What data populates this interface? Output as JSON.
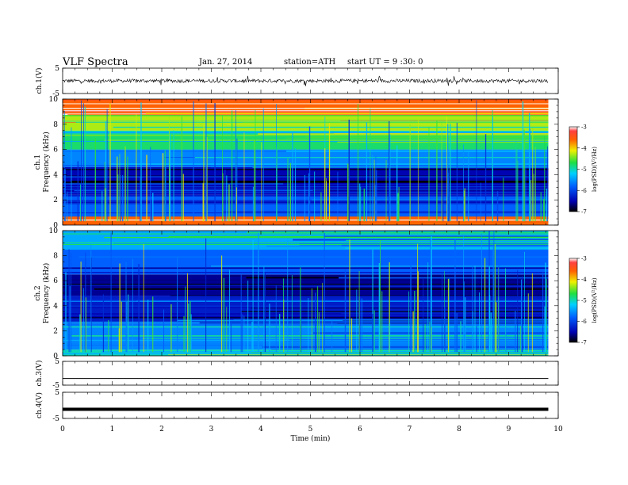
{
  "header": {
    "title": "VLF  Spectra",
    "date": "Jan. 27, 2014",
    "station": "station=ATH",
    "start": "start  UT  =   9  :30: 0"
  },
  "chart_data": [
    {
      "type": "line",
      "panel": "ch1-waveform",
      "ylabel": "ch.1(V)",
      "ylim": [
        -5,
        5
      ],
      "yticks": [
        "5",
        "-5"
      ],
      "x_range_min": [
        0,
        9.8
      ],
      "signal_level": 0,
      "note_values": "noisy waveform around 0 V with spikes up to about +/-1.5 V"
    },
    {
      "type": "heatmap",
      "panel": "ch1-spectrogram",
      "ylabel_channel": "ch.1",
      "ylabel": "Frequency  (kHz)",
      "ylim": [
        0,
        10
      ],
      "yticks": [
        "0",
        "2",
        "4",
        "6",
        "8",
        "10"
      ],
      "x_range_min": [
        0,
        9.8
      ],
      "colorbar_label": "log(PSD)(V²/Hz)",
      "colorbar_ticks": [
        "-3",
        "-4",
        "-5",
        "-6",
        "-7"
      ],
      "colorbar_range": [
        -7,
        -3
      ],
      "bands_khz": [
        {
          "from": 0,
          "to": 0.7,
          "level": -3.6
        },
        {
          "from": 0.7,
          "to": 2.4,
          "level": -5.8
        },
        {
          "from": 2.4,
          "to": 4.6,
          "level": -6.5
        },
        {
          "from": 4.6,
          "to": 6.0,
          "level": -5.6
        },
        {
          "from": 6.0,
          "to": 7.5,
          "level": -4.8
        },
        {
          "from": 7.5,
          "to": 8.8,
          "level": -4.3
        },
        {
          "from": 8.8,
          "to": 10,
          "level": -3.6
        }
      ]
    },
    {
      "type": "heatmap",
      "panel": "ch2-spectrogram",
      "ylabel_channel": "ch.2",
      "ylabel": "Frequency  (kHz)",
      "ylim": [
        0,
        10
      ],
      "yticks": [
        "0",
        "2",
        "4",
        "6",
        "8",
        "10"
      ],
      "x_range_min": [
        0,
        9.8
      ],
      "colorbar_label": "log(PSD)(V²/Hz)",
      "colorbar_ticks": [
        "-3",
        "-4",
        "-5",
        "-6",
        "-7"
      ],
      "colorbar_range": [
        -7,
        -3
      ],
      "bands_khz": [
        {
          "from": 0,
          "to": 0.5,
          "level": -5.0
        },
        {
          "from": 0.5,
          "to": 2.6,
          "level": -5.6
        },
        {
          "from": 2.6,
          "to": 4.8,
          "level": -6.3
        },
        {
          "from": 4.8,
          "to": 6.5,
          "level": -6.6
        },
        {
          "from": 6.5,
          "to": 8.5,
          "level": -5.8
        },
        {
          "from": 8.5,
          "to": 10,
          "level": -5.4
        }
      ]
    },
    {
      "type": "line",
      "panel": "ch3-waveform",
      "ylabel": "ch.3(V)",
      "ylim": [
        -5,
        5
      ],
      "yticks": [
        "5",
        "-5"
      ],
      "x_range_min": [
        0,
        9.8
      ],
      "signal_level": -2.2
    },
    {
      "type": "line",
      "panel": "ch4-waveform",
      "ylabel": "ch.4(V)",
      "ylim": [
        -5,
        5
      ],
      "yticks": [
        "5",
        "-5"
      ],
      "x_range_min": [
        0,
        9.8
      ],
      "signal_level": -1.5
    }
  ],
  "x_axis": {
    "label": "Time  (min)",
    "range": [
      0,
      10
    ],
    "ticks": [
      "0",
      "1",
      "2",
      "3",
      "4",
      "5",
      "6",
      "7",
      "8",
      "9",
      "10"
    ]
  }
}
